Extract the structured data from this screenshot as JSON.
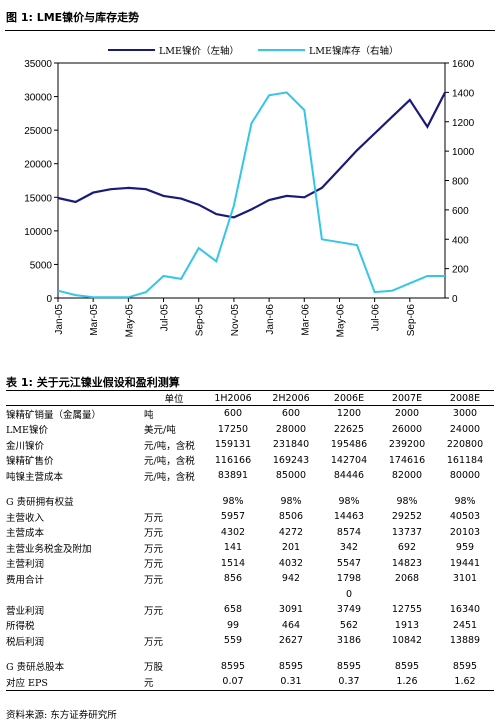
{
  "figure_title": "图 1:  LME镍价与库存走势",
  "table_title": "表 1:  关于元江镍业假设和盈利测算",
  "source": "资料来源:  东方证券研究所",
  "chart_data": {
    "type": "line",
    "x_ticks": [
      "Jan-05",
      "Mar-05",
      "May-05",
      "Jul-05",
      "Sep-05",
      "Nov-05",
      "Jan-06",
      "Mar-06",
      "May-06",
      "Jul-06",
      "Sep-06"
    ],
    "x_range": [
      "2005-01",
      "2006-11"
    ],
    "ylim_left": [
      0,
      35000
    ],
    "yticks_left": [
      "0",
      "5000",
      "10000",
      "15000",
      "20000",
      "25000",
      "30000",
      "35000"
    ],
    "ylim_right": [
      0,
      1600
    ],
    "yticks_right": [
      "0",
      "200",
      "400",
      "600",
      "800",
      "1000",
      "1200",
      "1400",
      "1600"
    ],
    "colors": {
      "price": "#1a1a7a",
      "stock": "#33c6ea"
    },
    "series": [
      {
        "name": "LME镍价（左轴）",
        "axis": "left",
        "x": [
          "2005-01",
          "2005-02",
          "2005-03",
          "2005-04",
          "2005-05",
          "2005-06",
          "2005-07",
          "2005-08",
          "2005-09",
          "2005-10",
          "2005-11",
          "2005-12",
          "2006-01",
          "2006-02",
          "2006-03",
          "2006-04",
          "2006-05",
          "2006-06",
          "2006-07",
          "2006-08",
          "2006-09",
          "2006-10",
          "2006-11"
        ],
        "values": [
          14900,
          14300,
          15700,
          16200,
          16400,
          16200,
          15200,
          14800,
          13900,
          12500,
          12000,
          13200,
          14600,
          15200,
          15000,
          16400,
          19200,
          22000,
          24500,
          27000,
          29500,
          25500,
          30600
        ]
      },
      {
        "name": "LME镍库存（右轴）",
        "axis": "right",
        "x": [
          "2005-01",
          "2005-02",
          "2005-03",
          "2005-04",
          "2005-05",
          "2005-06",
          "2005-07",
          "2005-08",
          "2005-09",
          "2005-10",
          "2005-11",
          "2005-12",
          "2006-01",
          "2006-02",
          "2006-03",
          "2006-04",
          "2006-05",
          "2006-06",
          "2006-07",
          "2006-08",
          "2006-09",
          "2006-10",
          "2006-11"
        ],
        "values": [
          50,
          20,
          5,
          5,
          5,
          40,
          150,
          130,
          340,
          250,
          630,
          1190,
          1380,
          1400,
          1280,
          400,
          380,
          360,
          40,
          50,
          100,
          150,
          150
        ]
      }
    ]
  },
  "table": {
    "header": [
      "",
      "单位",
      "1H2006",
      "2H2006",
      "2006E",
      "2007E",
      "2008E"
    ],
    "rows": [
      {
        "label": "镍精矿销量（金属量）",
        "unit": "吨",
        "values": [
          "600",
          "600",
          "1200",
          "2000",
          "3000"
        ]
      },
      {
        "label": "LME镍价",
        "unit": "美元/吨",
        "values": [
          "17250",
          "28000",
          "22625",
          "26000",
          "24000"
        ]
      },
      {
        "label": "金川镍价",
        "unit": "元/吨，含税",
        "values": [
          "159131",
          "231840",
          "195486",
          "239200",
          "220800"
        ]
      },
      {
        "label": "镍精矿售价",
        "unit": "元/吨，含税",
        "values": [
          "116166",
          "169243",
          "142704",
          "174616",
          "161184"
        ]
      },
      {
        "label": "吨镍主营成本",
        "unit": "元/吨，含税",
        "values": [
          "83891",
          "85000",
          "84446",
          "82000",
          "80000"
        ]
      },
      {
        "gap": true
      },
      {
        "label": "G 贵研拥有权益",
        "unit": "",
        "values": [
          "98%",
          "98%",
          "98%",
          "98%",
          "98%"
        ]
      },
      {
        "label": "主营收入",
        "unit": "万元",
        "values": [
          "5957",
          "8506",
          "14463",
          "29252",
          "40503"
        ]
      },
      {
        "label": "主营成本",
        "unit": "万元",
        "values": [
          "4302",
          "4272",
          "8574",
          "13737",
          "20103"
        ]
      },
      {
        "label": "主营业务税金及附加",
        "unit": "万元",
        "values": [
          "141",
          "201",
          "342",
          "692",
          "959"
        ]
      },
      {
        "label": "主营利润",
        "unit": "万元",
        "values": [
          "1514",
          "4032",
          "5547",
          "14823",
          "19441"
        ]
      },
      {
        "label": "费用合计",
        "unit": "万元",
        "values": [
          "856",
          "942",
          "1798",
          "2068",
          "3101"
        ]
      },
      {
        "label": "",
        "unit": "",
        "values": [
          "",
          "",
          "0",
          "",
          ""
        ]
      },
      {
        "label": "营业利润",
        "unit": "万元",
        "values": [
          "658",
          "3091",
          "3749",
          "12755",
          "16340"
        ]
      },
      {
        "label": "所得税",
        "unit": "",
        "values": [
          "99",
          "464",
          "562",
          "1913",
          "2451"
        ]
      },
      {
        "label": "税后利润",
        "unit": "万元",
        "values": [
          "559",
          "2627",
          "3186",
          "10842",
          "13889"
        ]
      },
      {
        "gap": true
      },
      {
        "label": "G 贵研总股本",
        "unit": "万股",
        "values": [
          "8595",
          "8595",
          "8595",
          "8595",
          "8595"
        ]
      },
      {
        "label": "对应 EPS",
        "unit": "元",
        "values": [
          "0.07",
          "0.31",
          "0.37",
          "1.26",
          "1.62"
        ],
        "last": true
      }
    ]
  }
}
